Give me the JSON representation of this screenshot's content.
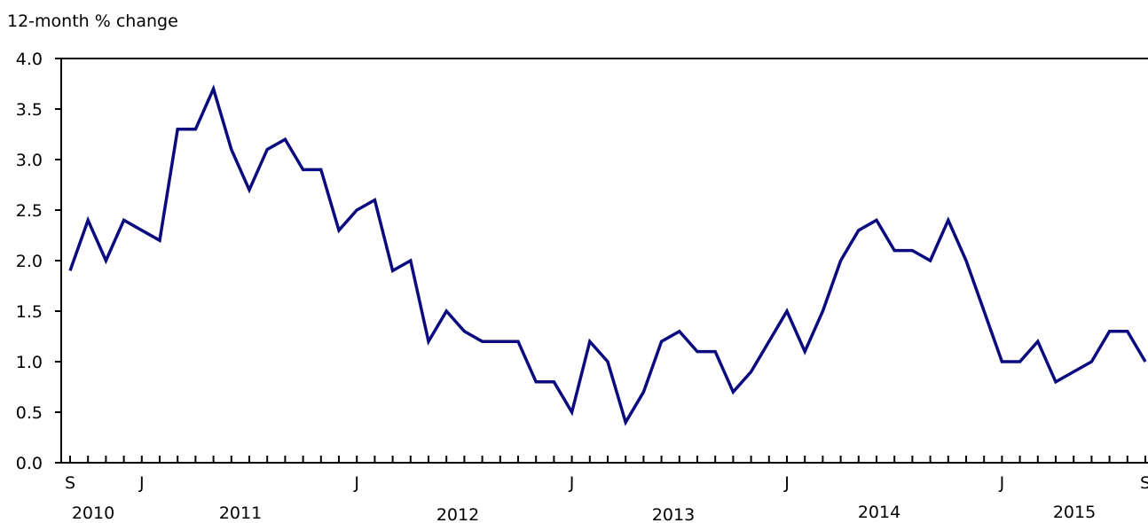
{
  "chart_data": {
    "type": "line",
    "ylabel": "12-month % change",
    "ylim": [
      0.0,
      4.0
    ],
    "yticks": [
      "0.0",
      "0.5",
      "1.0",
      "1.5",
      "2.0",
      "2.5",
      "3.0",
      "3.5",
      "4.0"
    ],
    "x_month_labels": [
      {
        "index": 0,
        "label": "S"
      },
      {
        "index": 4,
        "label": "J"
      },
      {
        "index": 16,
        "label": "J"
      },
      {
        "index": 28,
        "label": "J"
      },
      {
        "index": 40,
        "label": "J"
      },
      {
        "index": 52,
        "label": "J"
      },
      {
        "index": 60,
        "label": "S"
      }
    ],
    "x_year_labels": [
      "2010",
      "2011",
      "2012",
      "2013",
      "2014",
      "2015"
    ],
    "x_start": "2010-09",
    "x_end": "2015-09",
    "series": [
      {
        "color": "#0b0b7f",
        "values": [
          1.9,
          2.4,
          2.0,
          2.4,
          2.3,
          2.2,
          3.3,
          3.3,
          3.7,
          3.1,
          2.7,
          3.1,
          3.2,
          2.9,
          2.9,
          2.3,
          2.5,
          2.6,
          1.9,
          2.0,
          1.2,
          1.5,
          1.3,
          1.2,
          1.2,
          1.2,
          0.8,
          0.8,
          0.5,
          1.2,
          1.0,
          0.4,
          0.7,
          1.2,
          1.3,
          1.1,
          1.1,
          0.7,
          0.9,
          1.2,
          1.5,
          1.1,
          1.5,
          2.0,
          2.3,
          2.4,
          2.1,
          2.1,
          2.0,
          2.4,
          2.0,
          1.5,
          1.0,
          1.0,
          1.2,
          0.8,
          0.9,
          1.0,
          1.3,
          1.3,
          1.0
        ]
      }
    ],
    "grid": false,
    "legend": "none"
  }
}
